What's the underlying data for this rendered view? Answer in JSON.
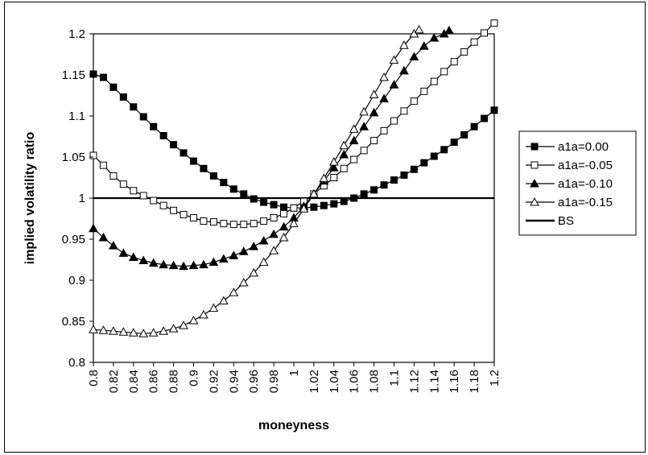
{
  "chart_data": {
    "type": "line",
    "title": "",
    "xlabel": "moneyness",
    "ylabel": "implied volatility ratio",
    "xlim": [
      0.8,
      1.2
    ],
    "ylim": [
      0.8,
      1.2
    ],
    "x_ticks": [
      "0.8",
      "0.82",
      "0.84",
      "0.86",
      "0.88",
      "0.9",
      "0.92",
      "0.94",
      "0.96",
      "0.98",
      "1",
      "1.02",
      "1.04",
      "1.06",
      "1.08",
      "1.1",
      "1.12",
      "1.14",
      "1.16",
      "1.18",
      "1.2"
    ],
    "y_ticks": [
      "0.8",
      "0.85",
      "0.9",
      "0.95",
      "1",
      "1.05",
      "1.1",
      "1.15",
      "1.2"
    ],
    "grid": false,
    "legend_position": "right",
    "series": [
      {
        "name": "a1a=0.00",
        "marker": "filled-square",
        "x": [
          0.8,
          0.81,
          0.82,
          0.83,
          0.84,
          0.85,
          0.86,
          0.87,
          0.88,
          0.89,
          0.9,
          0.91,
          0.92,
          0.93,
          0.94,
          0.95,
          0.96,
          0.97,
          0.98,
          0.99,
          1.0,
          1.01,
          1.02,
          1.03,
          1.04,
          1.05,
          1.06,
          1.07,
          1.08,
          1.09,
          1.1,
          1.11,
          1.12,
          1.13,
          1.14,
          1.15,
          1.16,
          1.17,
          1.18,
          1.19,
          1.2
        ],
        "values": [
          1.151,
          1.147,
          1.135,
          1.123,
          1.111,
          1.099,
          1.087,
          1.076,
          1.065,
          1.055,
          1.045,
          1.036,
          1.027,
          1.019,
          1.011,
          1.005,
          0.999,
          0.995,
          0.992,
          0.989,
          0.988,
          0.988,
          0.989,
          0.991,
          0.993,
          0.996,
          1.0,
          1.005,
          1.01,
          1.016,
          1.022,
          1.028,
          1.035,
          1.043,
          1.051,
          1.059,
          1.068,
          1.077,
          1.087,
          1.097,
          1.107
        ]
      },
      {
        "name": "a1a=-0.05",
        "marker": "open-square",
        "x": [
          0.8,
          0.81,
          0.82,
          0.83,
          0.84,
          0.85,
          0.86,
          0.87,
          0.88,
          0.89,
          0.9,
          0.91,
          0.92,
          0.93,
          0.94,
          0.95,
          0.96,
          0.97,
          0.98,
          0.99,
          1.0,
          1.01,
          1.02,
          1.03,
          1.04,
          1.05,
          1.06,
          1.07,
          1.08,
          1.09,
          1.1,
          1.11,
          1.12,
          1.13,
          1.14,
          1.15,
          1.16,
          1.17,
          1.18,
          1.19,
          1.2
        ],
        "values": [
          1.052,
          1.04,
          1.027,
          1.017,
          1.009,
          1.003,
          0.997,
          0.991,
          0.985,
          0.98,
          0.976,
          0.972,
          0.971,
          0.969,
          0.968,
          0.968,
          0.969,
          0.972,
          0.976,
          0.981,
          0.988,
          0.996,
          1.005,
          1.015,
          1.025,
          1.036,
          1.047,
          1.058,
          1.07,
          1.082,
          1.094,
          1.106,
          1.118,
          1.13,
          1.142,
          1.154,
          1.166,
          1.178,
          1.19,
          1.201,
          1.213
        ]
      },
      {
        "name": "a1a=-0.10",
        "marker": "filled-triangle",
        "x": [
          0.8,
          0.81,
          0.82,
          0.83,
          0.84,
          0.85,
          0.86,
          0.87,
          0.88,
          0.89,
          0.9,
          0.91,
          0.92,
          0.93,
          0.94,
          0.95,
          0.96,
          0.97,
          0.98,
          0.99,
          1.0,
          1.01,
          1.02,
          1.03,
          1.04,
          1.05,
          1.06,
          1.07,
          1.08,
          1.09,
          1.1,
          1.11,
          1.12,
          1.13,
          1.14,
          1.15,
          1.155
        ],
        "values": [
          0.963,
          0.952,
          0.942,
          0.933,
          0.928,
          0.924,
          0.921,
          0.919,
          0.918,
          0.917,
          0.918,
          0.919,
          0.922,
          0.926,
          0.93,
          0.935,
          0.941,
          0.948,
          0.956,
          0.965,
          0.976,
          0.99,
          1.005,
          1.021,
          1.037,
          1.053,
          1.07,
          1.087,
          1.104,
          1.121,
          1.138,
          1.155,
          1.172,
          1.185,
          1.195,
          1.2,
          1.204
        ]
      },
      {
        "name": "a1a=-0.15",
        "marker": "open-triangle",
        "x": [
          0.8,
          0.81,
          0.82,
          0.83,
          0.84,
          0.85,
          0.86,
          0.87,
          0.88,
          0.89,
          0.9,
          0.91,
          0.92,
          0.93,
          0.94,
          0.95,
          0.96,
          0.97,
          0.98,
          0.99,
          1.0,
          1.01,
          1.02,
          1.03,
          1.04,
          1.05,
          1.06,
          1.07,
          1.08,
          1.09,
          1.1,
          1.11,
          1.12,
          1.125
        ],
        "values": [
          0.84,
          0.839,
          0.838,
          0.837,
          0.836,
          0.835,
          0.836,
          0.838,
          0.841,
          0.845,
          0.851,
          0.858,
          0.866,
          0.875,
          0.885,
          0.897,
          0.909,
          0.922,
          0.936,
          0.952,
          0.969,
          0.987,
          1.005,
          1.024,
          1.044,
          1.064,
          1.084,
          1.105,
          1.126,
          1.147,
          1.168,
          1.186,
          1.2,
          1.205
        ]
      },
      {
        "name": "BS",
        "marker": "none",
        "x": [
          0.8,
          1.2
        ],
        "values": [
          1.0,
          1.0
        ]
      }
    ]
  }
}
